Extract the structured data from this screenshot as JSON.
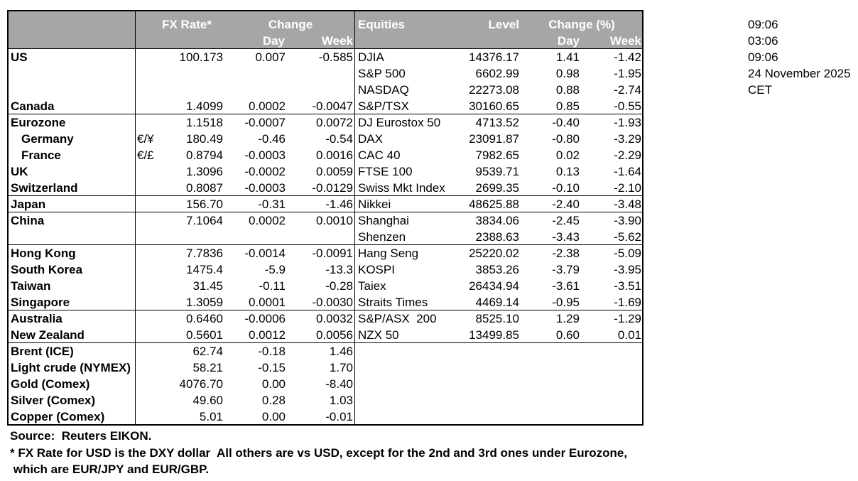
{
  "header": {
    "fx_rate": "FX Rate*",
    "change": "Change",
    "fx_day": "Day",
    "fx_week": "Week",
    "equities": "Equities",
    "level": "Level",
    "change_pct": "Change (%)",
    "eq_day": "Day",
    "eq_week": "Week"
  },
  "rows": [
    {
      "label": "US",
      "fx": "100.173",
      "day": "0.007",
      "week": "-0.585",
      "equity": "DJIA",
      "level": "14376.17",
      "eq_day": "1.41",
      "eq_week": "-1.42"
    },
    {
      "equity": "S&P 500",
      "level": "6602.99",
      "eq_day": "0.98",
      "eq_week": "-1.95"
    },
    {
      "equity": "NASDAQ",
      "level": "22273.08",
      "eq_day": "0.88",
      "eq_week": "-2.74"
    },
    {
      "label": "Canada",
      "fx": "1.4099",
      "day": "0.0002",
      "week": "-0.0047",
      "equity": "S&P/TSX",
      "level": "30160.65",
      "eq_day": "0.85",
      "eq_week": "-0.55"
    },
    {
      "label": "Eurozone",
      "fx": "1.1518",
      "day": "-0.0007",
      "week": "0.0072",
      "equity": "DJ Eurostox 50",
      "level": "4713.52",
      "eq_day": "-0.40",
      "eq_week": "-1.93"
    },
    {
      "label": "Germany",
      "sub": "€/¥",
      "fx": "180.49",
      "day": "-0.46",
      "week": "-0.54",
      "equity": "DAX",
      "level": "23091.87",
      "eq_day": "-0.80",
      "eq_week": "-3.29"
    },
    {
      "label": "France",
      "sub": "€/£",
      "fx": "0.8794",
      "day": "-0.0003",
      "week": "0.0016",
      "equity": "CAC 40",
      "level": "7982.65",
      "eq_day": "0.02",
      "eq_week": "-2.29"
    },
    {
      "label": "UK",
      "fx": "1.3096",
      "day": "-0.0002",
      "week": "0.0059",
      "equity": "FTSE 100",
      "level": "9539.71",
      "eq_day": "0.13",
      "eq_week": "-1.64"
    },
    {
      "label": "Switzerland",
      "fx": "0.8087",
      "day": "-0.0003",
      "week": "-0.0129",
      "equity": "Swiss Mkt Index",
      "level": "2699.35",
      "eq_day": "-0.10",
      "eq_week": "-2.10"
    },
    {
      "label": "Japan",
      "fx": "156.70",
      "day": "-0.31",
      "week": "-1.46",
      "equity": "Nikkei",
      "level": "48625.88",
      "eq_day": "-2.40",
      "eq_week": "-3.48"
    },
    {
      "label": "China",
      "fx": "7.1064",
      "day": "0.0002",
      "week": "0.0010",
      "equity": "Shanghai",
      "level": "3834.06",
      "eq_day": "-2.45",
      "eq_week": "-3.90"
    },
    {
      "equity": "Shenzen",
      "level": "2388.63",
      "eq_day": "-3.43",
      "eq_week": "-5.62"
    },
    {
      "label": "Hong Kong",
      "fx": "7.7836",
      "day": "-0.0014",
      "week": "-0.0091",
      "equity": "Hang Seng",
      "level": "25220.02",
      "eq_day": "-2.38",
      "eq_week": "-5.09"
    },
    {
      "label": "South Korea",
      "fx": "1475.4",
      "day": "-5.9",
      "week": "-13.3",
      "equity": "KOSPI",
      "level": "3853.26",
      "eq_day": "-3.79",
      "eq_week": "-3.95"
    },
    {
      "label": "Taiwan",
      "fx": "31.45",
      "day": "-0.11",
      "week": "-0.28",
      "equity": "Taiex",
      "level": "26434.94",
      "eq_day": "-3.61",
      "eq_week": "-3.51"
    },
    {
      "label": "Singapore",
      "fx": "1.3059",
      "day": "0.0001",
      "week": "-0.0030",
      "equity": "Straits Times",
      "level": "4469.14",
      "eq_day": "-0.95",
      "eq_week": "-1.69"
    },
    {
      "label": "Australia",
      "fx": "0.6460",
      "day": "-0.0006",
      "week": "0.0032",
      "equity": "S&P/ASX  200",
      "level": "8525.10",
      "eq_day": "1.29",
      "eq_week": "-1.29"
    },
    {
      "label": "New Zealand",
      "fx": "0.5601",
      "day": "0.0012",
      "week": "0.0056",
      "equity": "NZX 50",
      "level": "13499.85",
      "eq_day": "0.60",
      "eq_week": "0.01"
    },
    {
      "label": "Brent (ICE)",
      "fx": "62.74",
      "day": "-0.18",
      "week": "1.46"
    },
    {
      "label": "Light crude (NYMEX)",
      "fx": "58.21",
      "day": "-0.15",
      "week": "1.70"
    },
    {
      "label": "Gold (Comex)",
      "fx": "4076.70",
      "day": "0.00",
      "week": "-8.40"
    },
    {
      "label": "Silver (Comex)",
      "fx": "49.60",
      "day": "0.28",
      "week": "1.03"
    },
    {
      "label": "Copper (Comex)",
      "fx": "5.01",
      "day": "0.00",
      "week": "-0.01"
    }
  ],
  "times": [
    "09:06",
    "03:06",
    "09:06",
    "24 November 2025",
    "CET"
  ],
  "footnotes": [
    "Source:  Reuters EIKON.",
    "* FX Rate for USD is the DXY dollar  All others are vs USD, except for the 2nd and 3rd ones under Eurozone,",
    " which are EUR/JPY and EUR/GBP."
  ]
}
